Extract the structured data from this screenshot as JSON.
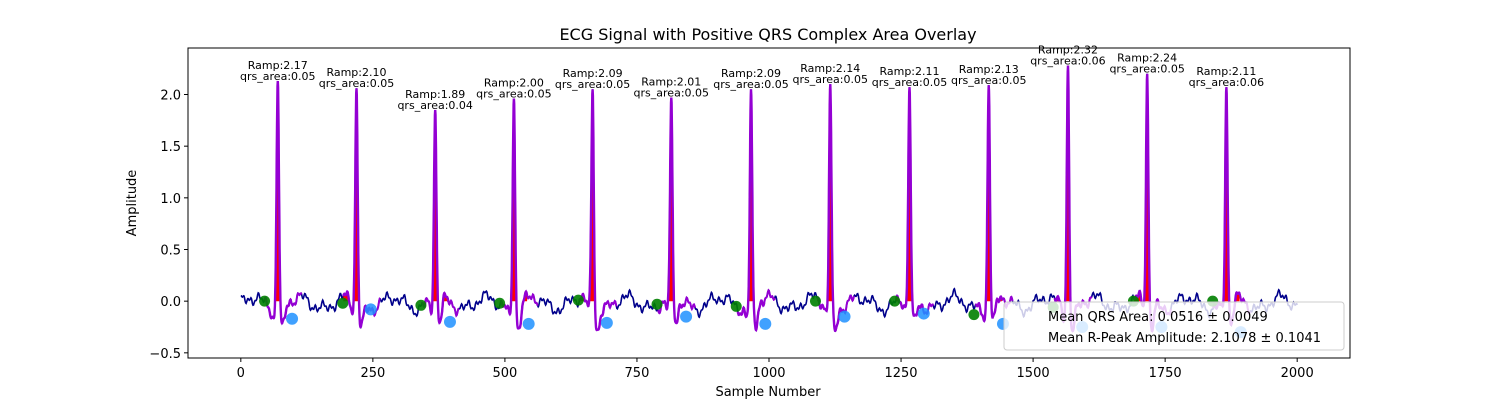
{
  "chart_data": {
    "type": "line",
    "title": "ECG Signal with Positive QRS Complex Area Overlay",
    "xlabel": "Sample Number",
    "ylabel": "Amplitude",
    "xlim": [
      -100,
      2100
    ],
    "ylim": [
      -0.55,
      2.45
    ],
    "xticks": [
      0,
      250,
      500,
      750,
      1000,
      1250,
      1500,
      1750,
      2000
    ],
    "xtick_labels": [
      "0",
      "250",
      "500",
      "750",
      "1000",
      "1250",
      "1500",
      "1750",
      "2000"
    ],
    "yticks": [
      -0.5,
      0.0,
      0.5,
      1.0,
      1.5,
      2.0
    ],
    "ytick_labels": [
      "−0.5",
      "0.0",
      "0.5",
      "1.0",
      "1.5",
      "2.0"
    ],
    "grid": false,
    "series_colors": {
      "signal": "#00008b",
      "qrs_segment": "#9400d3",
      "qrs_area_fill": "#ff0000",
      "q_point": "#1e90ff",
      "s_point": "#008000"
    },
    "beats": [
      {
        "r_sample": 70,
        "r_amp": 2.17,
        "ramp_label": "Ramp:2.17",
        "area_label": "qrs_area:0.05"
      },
      {
        "r_sample": 219,
        "r_amp": 2.1,
        "ramp_label": "Ramp:2.10",
        "area_label": "qrs_area:0.05"
      },
      {
        "r_sample": 368,
        "r_amp": 1.89,
        "ramp_label": "Ramp:1.89",
        "area_label": "qrs_area:0.04"
      },
      {
        "r_sample": 517,
        "r_amp": 2.0,
        "ramp_label": "Ramp:2.00",
        "area_label": "qrs_area:0.05"
      },
      {
        "r_sample": 666,
        "r_amp": 2.09,
        "ramp_label": "Ramp:2.09",
        "area_label": "qrs_area:0.05"
      },
      {
        "r_sample": 815,
        "r_amp": 2.01,
        "ramp_label": "Ramp:2.01",
        "area_label": "qrs_area:0.05"
      },
      {
        "r_sample": 966,
        "r_amp": 2.09,
        "ramp_label": "Ramp:2.09",
        "area_label": "qrs_area:0.05"
      },
      {
        "r_sample": 1116,
        "r_amp": 2.14,
        "ramp_label": "Ramp:2.14",
        "area_label": "qrs_area:0.05"
      },
      {
        "r_sample": 1266,
        "r_amp": 2.11,
        "ramp_label": "Ramp:2.11",
        "area_label": "qrs_area:0.05"
      },
      {
        "r_sample": 1416,
        "r_amp": 2.13,
        "ramp_label": "Ramp:2.13",
        "area_label": "qrs_area:0.05"
      },
      {
        "r_sample": 1566,
        "r_amp": 2.32,
        "ramp_label": "Ramp:2.32",
        "area_label": "qrs_area:0.06"
      },
      {
        "r_sample": 1716,
        "r_amp": 2.24,
        "ramp_label": "Ramp:2.24",
        "area_label": "qrs_area:0.05"
      },
      {
        "r_sample": 1866,
        "r_amp": 2.11,
        "ramp_label": "Ramp:2.11",
        "area_label": "qrs_area:0.06"
      }
    ],
    "s_points": [
      [
        45,
        0.0
      ],
      [
        193,
        -0.02
      ],
      [
        341,
        -0.04
      ],
      [
        490,
        -0.02
      ],
      [
        639,
        0.01
      ],
      [
        788,
        -0.03
      ],
      [
        938,
        -0.05
      ],
      [
        1088,
        0.0
      ],
      [
        1238,
        0.0
      ],
      [
        1388,
        -0.13
      ],
      [
        1538,
        -0.06
      ],
      [
        1690,
        0.0
      ],
      [
        1840,
        0.0
      ]
    ],
    "q_points": [
      [
        97,
        -0.17
      ],
      [
        246,
        -0.08
      ],
      [
        396,
        -0.2
      ],
      [
        545,
        -0.22
      ],
      [
        693,
        -0.21
      ],
      [
        843,
        -0.15
      ],
      [
        993,
        -0.22
      ],
      [
        1143,
        -0.15
      ],
      [
        1293,
        -0.12
      ],
      [
        1443,
        -0.22
      ],
      [
        1593,
        -0.25
      ],
      [
        1743,
        -0.25
      ],
      [
        1893,
        -0.3
      ]
    ],
    "legend": {
      "placement": "lower-right",
      "entries": [
        "Mean QRS Area: 0.0516 ± 0.0049",
        "Mean R-Peak Amplitude: 2.1078 ± 0.1041"
      ]
    }
  }
}
